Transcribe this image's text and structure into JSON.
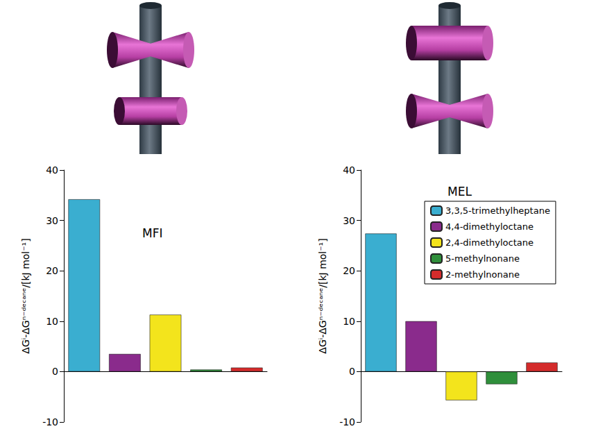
{
  "chart_data": [
    {
      "type": "bar",
      "title": "MFI",
      "ylabel": "ΔGⁱ-ΔGⁿ⁻ᵈᵉᶜᵃⁿᵉ/[kJ mol⁻¹]",
      "categories": [
        "3,3,5-trimethylheptane",
        "4,4-dimethyloctane",
        "2,4-dimethyloctane",
        "5-methylnonane",
        "2-methylnonane"
      ],
      "values": [
        34.2,
        3.5,
        11.3,
        0.4,
        0.8
      ],
      "colors": [
        "#3aaed0",
        "#8a2b8c",
        "#f3e41c",
        "#2f8f3b",
        "#d42b2b"
      ],
      "ylim": [
        -10,
        40
      ],
      "yticks": [
        -10,
        0,
        10,
        20,
        30,
        40
      ],
      "grid": false,
      "tick_labels": "y"
    },
    {
      "type": "bar",
      "title": "MEL",
      "ylabel": "ΔGⁱ-ΔGⁿ⁻ᵈᵉᶜᵃⁿᵉ/[kJ mol⁻¹]",
      "categories": [
        "3,3,5-trimethylheptane",
        "4,4-dimethyloctane",
        "2,4-dimethyloctane",
        "5-methylnonane",
        "2-methylnonane"
      ],
      "values": [
        27.4,
        10.0,
        -5.7,
        -2.5,
        1.8
      ],
      "colors": [
        "#3aaed0",
        "#8a2b8c",
        "#f3e41c",
        "#2f8f3b",
        "#d42b2b"
      ],
      "ylim": [
        -10,
        40
      ],
      "yticks": [
        -10,
        0,
        10,
        20,
        30,
        40
      ],
      "grid": false,
      "tick_labels": "y",
      "legend": "upper right"
    }
  ]
}
